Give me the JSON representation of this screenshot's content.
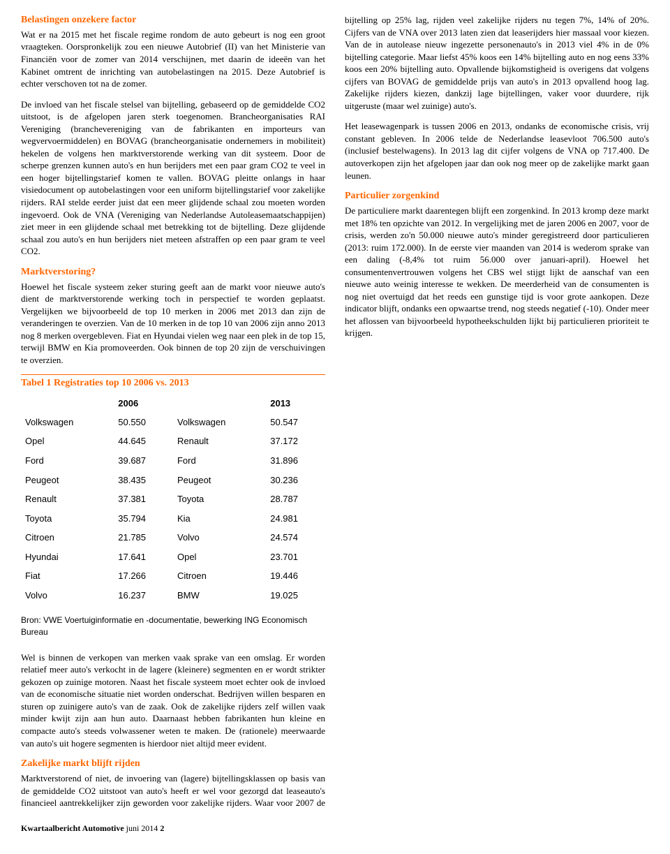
{
  "left": {
    "h1": "Belastingen onzekere factor",
    "p1": "Wat er na 2015 met het fiscale regime rondom de auto gebeurt is nog een groot vraagteken. Oorspronkelijk zou een nieuwe Autobrief (II) van het Ministerie van Financiën voor de zomer van 2014 verschijnen, met daarin de ideeën van het Kabinet omtrent de inrichting van autobelastingen na 2015. Deze Autobrief is echter verschoven tot na de zomer.",
    "p2": "De invloed van het fiscale stelsel van bijtelling, gebaseerd op de gemiddelde CO2 uitstoot, is de afgelopen jaren sterk toegenomen. Brancheorganisaties RAI Vereniging (branchevereniging van de fabrikanten en importeurs van wegvervoermiddelen) en BOVAG (brancheorganisatie ondernemers in mobiliteit) hekelen de volgens hen marktverstorende werking van dit systeem. Door de scherpe grenzen kunnen auto's en hun berijders met een paar gram CO2 te veel in een hoger bijtellingstarief komen te vallen. BOVAG pleitte onlangs in haar visiedocument op autobelastingen voor een uniform bijtellingstarief voor zakelijke rijders. RAI stelde eerder juist dat een meer glijdende schaal zou moeten worden ingevoerd. Ook de VNA (Vereniging van Nederlandse Autoleasemaatschappijen) ziet meer in een glijdende schaal met betrekking tot de bijtelling. Deze glijdende schaal zou auto's en hun berijders niet meteen afstraffen op een paar gram te veel CO2.",
    "h2": "Marktverstoring?",
    "p3": "Hoewel het fiscale systeem zeker sturing geeft aan de markt voor nieuwe auto's dient de marktverstorende werking toch in perspectief te worden geplaatst. Vergelijken we bijvoorbeeld de top 10 merken in 2006 met 2013 dan zijn de veranderingen te overzien. Van de 10 merken in de top 10 van 2006 zijn anno 2013 nog 8 merken overgebleven. Fiat en Hyundai vielen weg naar een plek in de top 15, terwijl BMW en Kia promoveerden. Ook binnen de top 20 zijn de verschuivingen te overzien."
  },
  "table": {
    "title": "Tabel 1 Registraties top 10 2006 vs. 2013",
    "col1": "2006",
    "col2": "2013",
    "rows": [
      [
        "Volkswagen",
        "50.550",
        "Volkswagen",
        "50.547"
      ],
      [
        "Opel",
        "44.645",
        "Renault",
        "37.172"
      ],
      [
        "Ford",
        "39.687",
        "Ford",
        "31.896"
      ],
      [
        "Peugeot",
        "38.435",
        "Peugeot",
        "30.236"
      ],
      [
        "Renault",
        "37.381",
        "Toyota",
        "28.787"
      ],
      [
        "Toyota",
        "35.794",
        "Kia",
        "24.981"
      ],
      [
        "Citroen",
        "21.785",
        "Volvo",
        "24.574"
      ],
      [
        "Hyundai",
        "17.641",
        "Opel",
        "23.701"
      ],
      [
        "Fiat",
        "17.266",
        "Citroen",
        "19.446"
      ],
      [
        "Volvo",
        "16.237",
        "BMW",
        "19.025"
      ]
    ],
    "source": "Bron: VWE Voertuiginformatie en -documentatie, bewerking ING Economisch Bureau"
  },
  "right": {
    "p1": "Wel is binnen de verkopen van merken vaak sprake van een omslag. Er worden relatief meer auto's verkocht in de lagere (kleinere) segmenten en er wordt strikter gekozen op zuinige motoren. Naast het fiscale systeem moet echter ook de invloed van de economische situatie niet worden onderschat. Bedrijven willen besparen en sturen op zuinigere auto's van de zaak. Ook de zakelijke rijders zelf willen vaak minder kwijt zijn aan hun auto. Daarnaast hebben fabrikanten hun kleine en compacte auto's steeds volwassener weten te maken. De (rationele) meerwaarde van auto's uit hogere segmenten is hierdoor niet altijd meer evident.",
    "h1": "Zakelijke markt blijft rijden",
    "p2": "Marktverstorend of niet, de invoering van (lagere) bijtellingsklassen op basis van de gemiddelde CO2 uitstoot van auto's heeft er wel voor gezorgd dat leaseauto's financieel aantrekkelijker zijn geworden voor zakelijke rijders. Waar voor 2007 de bijtelling op 25% lag, rijden veel zakelijke rijders nu tegen 7%, 14% of 20%. Cijfers van de VNA over 2013 laten zien dat leaserijders hier massaal voor kiezen. Van de in autolease nieuw ingezette personenauto's in 2013 viel 4% in de 0% bijtelling categorie. Maar liefst 45% koos een 14% bijtelling auto en nog eens 33% koos een 20% bijtelling auto. Opvallende bijkomstigheid is overigens dat volgens cijfers van BOVAG de gemiddelde prijs van auto's in 2013 opvallend hoog lag. Zakelijke rijders kiezen, dankzij lage bijtellingen, vaker voor duurdere, rijk uitgeruste (maar wel zuinige) auto's.",
    "p3": "Het leasewagenpark is tussen 2006 en 2013, ondanks de economische crisis, vrij constant gebleven. In 2006 telde de Nederlandse leasevloot 706.500 auto's (inclusief bestelwagens). In 2013 lag dit cijfer volgens de VNA op 717.400. De autoverkopen zijn het afgelopen jaar dan ook nog meer op de zakelijke markt gaan leunen.",
    "h2": "Particulier zorgenkind",
    "p4": "De particuliere markt daarentegen blijft een zorgenkind. In 2013 kromp deze markt met 18% ten opzichte van 2012. In vergelijking met de jaren 2006 en 2007, voor de crisis, werden zo'n 50.000 nieuwe auto's minder geregistreerd door particulieren (2013: ruim 172.000). In de eerste vier maanden van 2014 is wederom sprake van een daling (-8,4% tot ruim 56.000 over januari-april). Hoewel het consumentenvertrouwen volgens het CBS wel stijgt lijkt de aanschaf van een nieuwe auto weinig interesse te wekken. De meerderheid van de consumenten is nog niet overtuigd dat het reeds een gunstige tijd is voor grote aankopen. Deze indicator blijft, ondanks een opwaartse trend, nog steeds negatief (-10). Onder meer het aflossen van bijvoorbeeld hypotheekschulden lijkt bij particulieren prioriteit te krijgen."
  },
  "footer": {
    "bold": "Kwartaalbericht Automotive",
    "rest": " juni 2014 ",
    "page": "2"
  }
}
